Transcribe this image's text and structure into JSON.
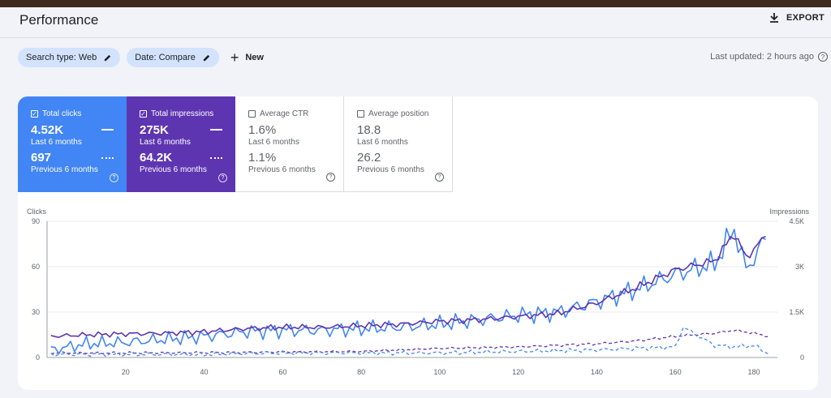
{
  "header": {
    "title": "Performance",
    "export_label": "EXPORT"
  },
  "filters": {
    "search_type": "Search type: Web",
    "date": "Date: Compare",
    "new_label": "New",
    "last_updated": "Last updated: 2 hours ago"
  },
  "metrics": [
    {
      "label": "Total clicks",
      "checked": true,
      "value": "4.52K",
      "period": "Last 6 months",
      "prev_value": "697",
      "prev_period": "Previous 6 months"
    },
    {
      "label": "Total impressions",
      "checked": true,
      "value": "275K",
      "period": "Last 6 months",
      "prev_value": "64.2K",
      "prev_period": "Previous 6 months"
    },
    {
      "label": "Average CTR",
      "checked": false,
      "value": "1.6%",
      "period": "Last 6 months",
      "prev_value": "1.1%",
      "prev_period": "Previous 6 months"
    },
    {
      "label": "Average position",
      "checked": false,
      "value": "18.8",
      "period": "Last 6 months",
      "prev_value": "26.2",
      "prev_period": "Previous 6 months"
    }
  ],
  "colors": {
    "clicks": "#4285f4",
    "impressions": "#5e35b1",
    "accent_chip": "#d3e3fd"
  },
  "chart_data": {
    "type": "line",
    "left_axis_label": "Clicks",
    "right_axis_label": "Impressions",
    "left_ticks": [
      "0",
      "30",
      "60",
      "90"
    ],
    "right_ticks": [
      "0",
      "1.5K",
      "3K",
      "4.5K"
    ],
    "x_ticks": [
      "20",
      "40",
      "60",
      "80",
      "100",
      "120",
      "140",
      "160",
      "180"
    ],
    "xlim": [
      0,
      186
    ],
    "ylim_left": [
      0,
      90
    ],
    "ylim_right": [
      0,
      4500
    ],
    "series": [
      {
        "name": "Clicks (Last 6 months)",
        "axis": "left",
        "style": "solid",
        "color": "#4285f4",
        "x": [
          1,
          10,
          20,
          30,
          40,
          50,
          60,
          70,
          80,
          90,
          100,
          110,
          120,
          130,
          140,
          150,
          160,
          170,
          175,
          178,
          183
        ],
        "values": [
          5,
          9,
          10,
          12,
          14,
          17,
          18,
          18,
          19,
          20,
          22,
          25,
          28,
          30,
          37,
          45,
          55,
          62,
          85,
          58,
          78
        ]
      },
      {
        "name": "Impressions (Last 6 months)",
        "axis": "right",
        "style": "solid",
        "color": "#5e35b1",
        "x": [
          1,
          10,
          20,
          30,
          40,
          50,
          60,
          70,
          80,
          90,
          100,
          110,
          120,
          130,
          140,
          150,
          160,
          170,
          175,
          178,
          183
        ],
        "values": [
          700,
          750,
          780,
          800,
          850,
          950,
          1000,
          1000,
          1050,
          1100,
          1200,
          1250,
          1350,
          1450,
          1800,
          2300,
          2900,
          3200,
          4100,
          3300,
          4000
        ]
      },
      {
        "name": "Clicks (Previous 6 months)",
        "axis": "left",
        "style": "dashed",
        "color": "#4285f4",
        "x": [
          1,
          20,
          40,
          60,
          80,
          100,
          120,
          140,
          150,
          160,
          162,
          170,
          175,
          180,
          184
        ],
        "values": [
          2,
          2,
          2,
          3,
          3,
          3,
          4,
          5,
          6,
          7,
          20,
          8,
          7,
          8,
          2
        ]
      },
      {
        "name": "Impressions (Previous 6 months)",
        "axis": "right",
        "style": "dashed",
        "color": "#5e35b1",
        "x": [
          1,
          20,
          40,
          60,
          80,
          100,
          120,
          140,
          150,
          160,
          170,
          175,
          180,
          184
        ],
        "values": [
          150,
          150,
          160,
          180,
          200,
          300,
          350,
          450,
          550,
          700,
          800,
          900,
          800,
          700
        ]
      }
    ]
  }
}
